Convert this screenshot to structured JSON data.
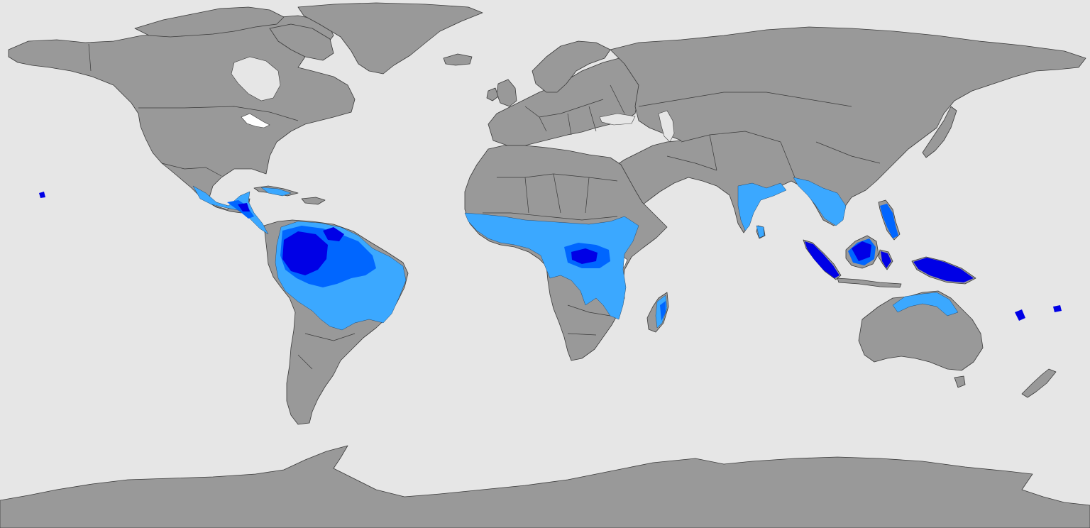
{
  "colors": {
    "ocean": "#e6e6e6",
    "land": "#999999",
    "border": "#3a3a3a",
    "zone_light": "#3ba8ff",
    "zone_medium": "#0066ff",
    "zone_dark": "#0000e6",
    "lake": "#ffffff"
  },
  "map": {
    "projection": "equirectangular",
    "view": "world",
    "zones": [
      "light",
      "medium",
      "dark"
    ]
  }
}
